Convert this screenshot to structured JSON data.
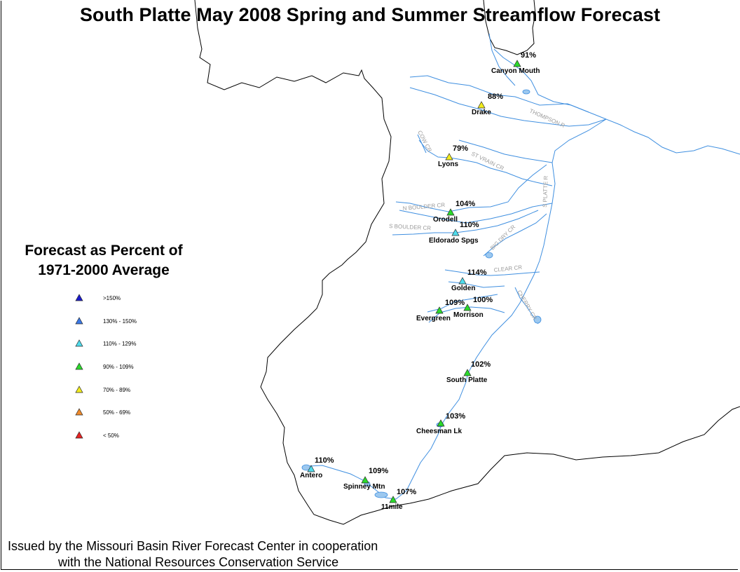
{
  "title": "South Platte May 2008 Spring and Summer Streamflow Forecast",
  "legend": {
    "title_line1": "Forecast as Percent of",
    "title_line2": "1971-2000 Average",
    "items": [
      {
        "label": ">150%",
        "color": "#1a1acc"
      },
      {
        "label": "130% - 150%",
        "color": "#3a78e6"
      },
      {
        "label": "110% - 129%",
        "color": "#4fdcec"
      },
      {
        "label": "90% - 109%",
        "color": "#2bd92b"
      },
      {
        "label": "70% - 89%",
        "color": "#f2ec1c"
      },
      {
        "label": "50% - 69%",
        "color": "#f08a2a"
      },
      {
        "label": "< 50%",
        "color": "#e62222"
      }
    ]
  },
  "stations": [
    {
      "name": "Canyon Mouth",
      "percent": "91%",
      "color": "#2bd92b"
    },
    {
      "name": "Drake",
      "percent": "88%",
      "color": "#f2ec1c"
    },
    {
      "name": "Lyons",
      "percent": "79%",
      "color": "#f2ec1c"
    },
    {
      "name": "Orodell",
      "percent": "104%",
      "color": "#2bd92b"
    },
    {
      "name": "Eldorado Spgs",
      "percent": "110%",
      "color": "#4fdcec"
    },
    {
      "name": "Golden",
      "percent": "114%",
      "color": "#4fdcec"
    },
    {
      "name": "Evergreen",
      "percent": "109%",
      "color": "#2bd92b"
    },
    {
      "name": "Morrison",
      "percent": "100%",
      "color": "#2bd92b"
    },
    {
      "name": "South Platte",
      "percent": "102%",
      "color": "#2bd92b"
    },
    {
      "name": "Cheesman Lk",
      "percent": "103%",
      "color": "#2bd92b"
    },
    {
      "name": "Antero",
      "percent": "110%",
      "color": "#4fdcec"
    },
    {
      "name": "Spinney Mtn",
      "percent": "109%",
      "color": "#2bd92b"
    },
    {
      "name": "11mile",
      "percent": "107%",
      "color": "#2bd92b"
    }
  ],
  "rivers": {
    "thompson": "THOMPSON R",
    "cow_cr": "COW CR",
    "st_vrain": "ST VRAIN CR",
    "n_boulder": "N BOULDER CR",
    "s_boulder": "S BOULDER CR",
    "s_platte": "S PLATTE R",
    "big_dry": "BIG DRY CR",
    "clear_cr": "CLEAR CR",
    "cherry_cr": "CHERRY CR"
  },
  "footer": {
    "line1": "Issued by the Missouri Basin River Forecast Center in cooperation",
    "line2": "with the National Resources Conservation Service"
  },
  "colors": {
    "river": "#3f8fe0",
    "boundary": "#000000",
    "lake": "#9cc8ef"
  }
}
